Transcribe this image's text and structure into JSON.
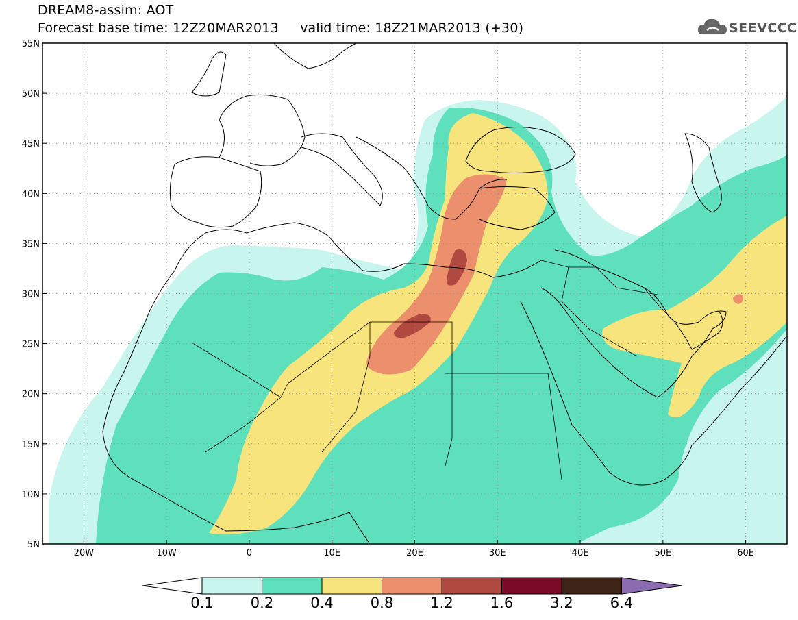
{
  "header": {
    "model": "DREAM8-assim: AOT",
    "base_label": "Forecast base time: 12Z20MAR2013",
    "valid_label": "valid time: 18Z21MAR2013 (+30)"
  },
  "logo": {
    "text": "SEEVCCC",
    "icon": "cloud-icon"
  },
  "map": {
    "lon_range": [
      -25,
      65
    ],
    "lat_range": [
      5,
      55
    ],
    "lon_ticks": [
      {
        "value": -20,
        "label": "20W"
      },
      {
        "value": -10,
        "label": "10W"
      },
      {
        "value": 0,
        "label": "0"
      },
      {
        "value": 10,
        "label": "10E"
      },
      {
        "value": 20,
        "label": "20E"
      },
      {
        "value": 30,
        "label": "30E"
      },
      {
        "value": 40,
        "label": "40E"
      },
      {
        "value": 50,
        "label": "50E"
      },
      {
        "value": 60,
        "label": "60E"
      }
    ],
    "lat_ticks": [
      {
        "value": 5,
        "label": "5N"
      },
      {
        "value": 10,
        "label": "10N"
      },
      {
        "value": 15,
        "label": "15N"
      },
      {
        "value": 20,
        "label": "20N"
      },
      {
        "value": 25,
        "label": "25N"
      },
      {
        "value": 30,
        "label": "30N"
      },
      {
        "value": 35,
        "label": "35N"
      },
      {
        "value": 40,
        "label": "40N"
      },
      {
        "value": 45,
        "label": "45N"
      },
      {
        "value": 50,
        "label": "50N"
      },
      {
        "value": 55,
        "label": "55N"
      }
    ],
    "grid": "dotted"
  },
  "colorbar": {
    "colors": [
      "#c8f5ee",
      "#5ee0bc",
      "#f8e47c",
      "#ec8f6c",
      "#b04a40",
      "#7a0a26",
      "#3d2416",
      "#8c6cb0"
    ],
    "labels": [
      "0.1",
      "0.2",
      "0.4",
      "0.8",
      "1.2",
      "1.6",
      "3.2",
      "6.4"
    ]
  }
}
